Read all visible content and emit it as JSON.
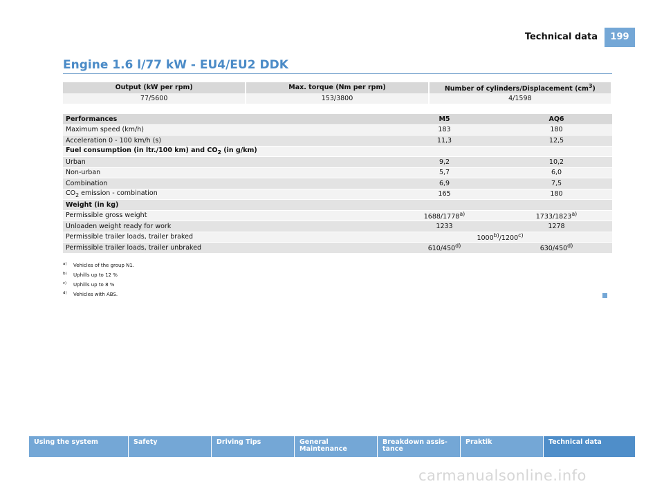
{
  "header": {
    "section": "Technical data",
    "page_number": "199"
  },
  "title": "Engine 1.6 l/77 kW - EU4/EU2 DDK",
  "engine_table": {
    "headers": [
      "Output (kW per rpm)",
      "Max. torque (Nm per rpm)",
      "Number of cylinders/Displacement (cm"
    ],
    "header_sup": "3",
    "header_close": ")",
    "values": [
      "77/5600",
      "153/3800",
      "4/1598"
    ]
  },
  "perf_table": {
    "header": {
      "label": "Performances",
      "col1": "M5",
      "col2": "AQ6"
    },
    "max_speed": {
      "label": "Maximum speed (km/h)",
      "v1": "183",
      "v2": "180"
    },
    "acceleration": {
      "label": "Acceleration 0 - 100 km/h (s)",
      "v1": "11,3",
      "v2": "12,5"
    },
    "fuel_section": {
      "pre": "Fuel consumption (in ltr./100 km) and CO",
      "sub": "2",
      "post": " (in g/km)"
    },
    "urban": {
      "label": "Urban",
      "v1": "9,2",
      "v2": "10,2"
    },
    "non_urban": {
      "label": "Non-urban",
      "v1": "5,7",
      "v2": "6,0"
    },
    "combination": {
      "label": "Combination",
      "v1": "6,9",
      "v2": "7,5"
    },
    "co2": {
      "pre": "CO",
      "sub": "2",
      "post": " emission - combination",
      "v1": "165",
      "v2": "180"
    },
    "weight_section": "Weight (in kg)",
    "gross_weight": {
      "label": "Permissible gross weight",
      "v1": "1688/1778",
      "v1_sup": "a)",
      "v2": "1733/1823",
      "v2_sup": "a)"
    },
    "unladen_weight": {
      "label": "Unloaden weight ready for work",
      "v1": "1233",
      "v2": "1278"
    },
    "trailer_braked": {
      "label": "Permissible trailer loads, trailer braked",
      "v_a": "1000",
      "v_a_sup": "b)",
      "v_b": "/1200",
      "v_b_sup": "c)"
    },
    "trailer_unbraked": {
      "label": "Permissible trailer loads, trailer unbraked",
      "v1": "610/450",
      "v1_sup": "d)",
      "v2": "630/450",
      "v2_sup": "d)"
    }
  },
  "footnotes": [
    {
      "mark": "a)",
      "text": "Vehicles of the group N1."
    },
    {
      "mark": "b)",
      "text": "Uphills up to 12 %"
    },
    {
      "mark": "c)",
      "text": "Uphills up to 8 %"
    },
    {
      "mark": "d)",
      "text": "Vehicles with ABS."
    }
  ],
  "footer_tabs": [
    {
      "line1": "Using the system",
      "line2": ""
    },
    {
      "line1": "Safety",
      "line2": ""
    },
    {
      "line1": "Driving Tips",
      "line2": ""
    },
    {
      "line1": "General Maintenance",
      "line2": ""
    },
    {
      "line1": "Breakdown assis-",
      "line2": "tance"
    },
    {
      "line1": "Praktik",
      "line2": ""
    },
    {
      "line1": "Technical data",
      "line2": ""
    }
  ],
  "watermark": "carmanualsonline.info",
  "colors": {
    "accent": "#74a7d6",
    "title_blue": "#4b8bc7",
    "active_tab": "#4f8ec9"
  }
}
